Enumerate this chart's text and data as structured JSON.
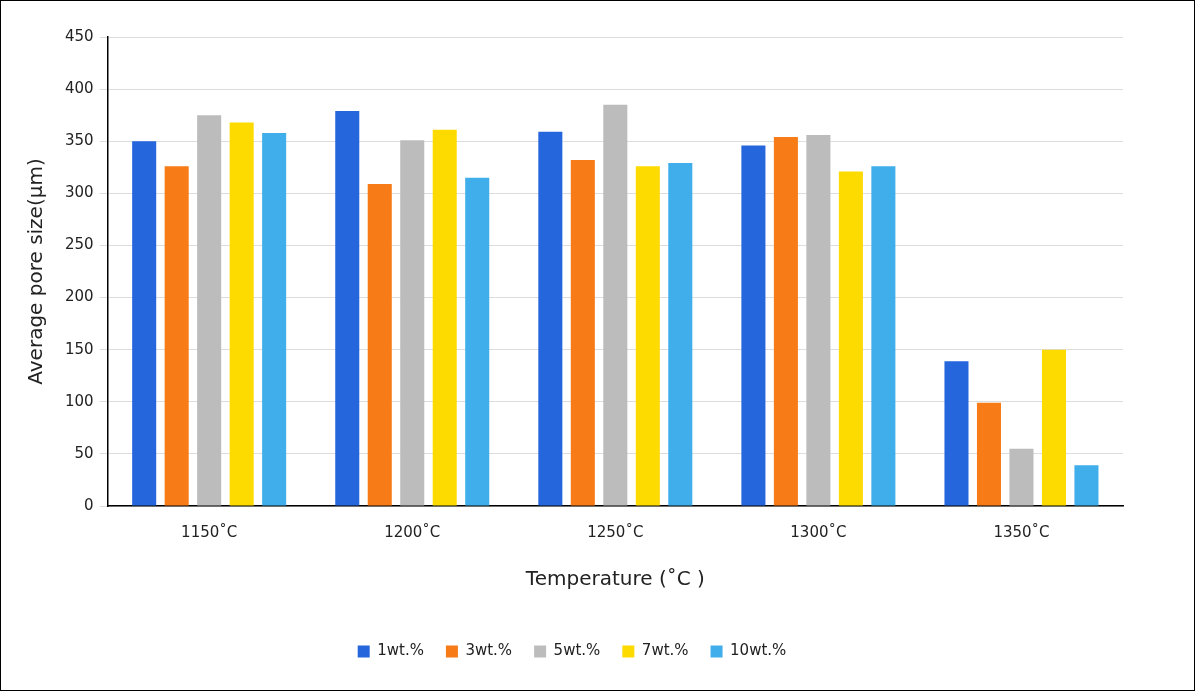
{
  "chart_data": {
    "type": "bar",
    "xlabel": "Temperature (˚C )",
    "ylabel": "Average pore size(μm)",
    "categories": [
      "1150˚C",
      "1200˚C",
      "1250˚C",
      "1300˚C",
      "1350˚C"
    ],
    "series": [
      {
        "name": "1wt.%",
        "color": "#2566dc",
        "values": [
          350,
          379,
          359,
          346,
          139
        ]
      },
      {
        "name": "3wt.%",
        "color": "#f77b17",
        "values": [
          326,
          309,
          332,
          354,
          99
        ]
      },
      {
        "name": "5wt.%",
        "color": "#bcbcbc",
        "values": [
          375,
          351,
          385,
          356,
          55
        ]
      },
      {
        "name": "7wt.%",
        "color": "#fedb00",
        "values": [
          368,
          361,
          326,
          321,
          150
        ]
      },
      {
        "name": "10wt.%",
        "color": "#3faeea",
        "values": [
          358,
          315,
          329,
          326,
          39
        ]
      }
    ],
    "ylim": [
      0,
      450
    ],
    "yticks": [
      0,
      50,
      100,
      150,
      200,
      250,
      300,
      350,
      400,
      450
    ],
    "grid": "y",
    "legend": "bottom"
  }
}
